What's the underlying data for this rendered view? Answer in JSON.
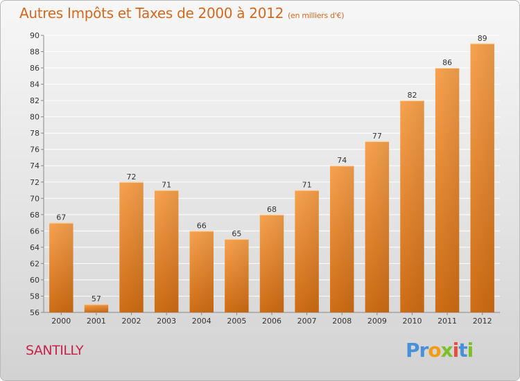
{
  "header": {
    "title": "Autres Impôts et Taxes de 2000 à 2012",
    "unit": "(en milliers d'€)"
  },
  "footer": {
    "place": "SANTILLY",
    "logo_letters": [
      {
        "char": "P",
        "color": "#4a90d9"
      },
      {
        "char": "r",
        "color": "#4a90d9"
      },
      {
        "char": "o",
        "color": "#f39c12"
      },
      {
        "char": "x",
        "color": "#7cbf2a"
      },
      {
        "char": "i",
        "color": "#e84c3d"
      },
      {
        "char": "t",
        "color": "#4a90d9"
      },
      {
        "char": "i",
        "color": "#7cbf2a"
      }
    ]
  },
  "colors": {
    "title": "#d2691e",
    "place": "#c8234b",
    "bar_light": "#f8a24e",
    "bar_dark": "#cf6d14",
    "grid": "#ffffff",
    "text": "#333333"
  },
  "chart_data": {
    "type": "bar",
    "title": "Autres Impôts et Taxes de 2000 à 2012",
    "subtitle": "(en milliers d'€)",
    "categories": [
      "2000",
      "2001",
      "2002",
      "2003",
      "2004",
      "2005",
      "2006",
      "2007",
      "2008",
      "2009",
      "2010",
      "2011",
      "2012"
    ],
    "values": [
      67,
      57,
      72,
      71,
      66,
      65,
      68,
      71,
      74,
      77,
      82,
      86,
      89
    ],
    "ylim": [
      56,
      90
    ],
    "yticks": [
      56,
      58,
      60,
      62,
      64,
      66,
      68,
      70,
      72,
      74,
      76,
      78,
      80,
      82,
      84,
      86,
      88,
      90
    ],
    "grid": true,
    "data_labels": true
  }
}
